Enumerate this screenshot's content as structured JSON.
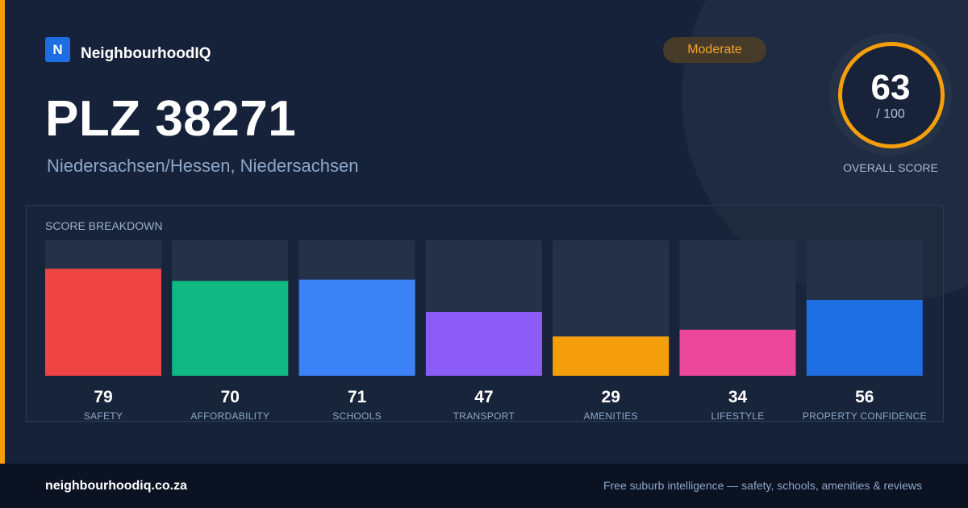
{
  "brand": {
    "logo_letter": "N",
    "name": "NeighbourhoodIQ"
  },
  "badge": {
    "label": "Moderate",
    "color": "#f59e0b"
  },
  "header": {
    "title": "PLZ 38271",
    "subtitle": "Niedersachsen/Hessen, Niedersachsen"
  },
  "overall": {
    "value": "63",
    "max_label": "/ 100",
    "label": "OVERALL SCORE"
  },
  "breakdown": {
    "title": "SCORE BREAKDOWN"
  },
  "chart_data": {
    "type": "bar",
    "categories": [
      "SAFETY",
      "AFFORDABILITY",
      "SCHOOLS",
      "TRANSPORT",
      "AMENITIES",
      "LIFESTYLE",
      "PROPERTY CONFIDENCE"
    ],
    "values": [
      79,
      70,
      71,
      47,
      29,
      34,
      56
    ],
    "colors": [
      "#ef4444",
      "#10b981",
      "#3b82f6",
      "#8b5cf6",
      "#f59e0b",
      "#ec4899",
      "#1d6ee0"
    ],
    "ylim": [
      0,
      100
    ],
    "xlabel": "",
    "ylabel": "",
    "grid": false
  },
  "footer": {
    "domain": "neighbourhoodiq.co.za",
    "tagline": "Free suburb intelligence — safety, schools, amenities & reviews"
  }
}
